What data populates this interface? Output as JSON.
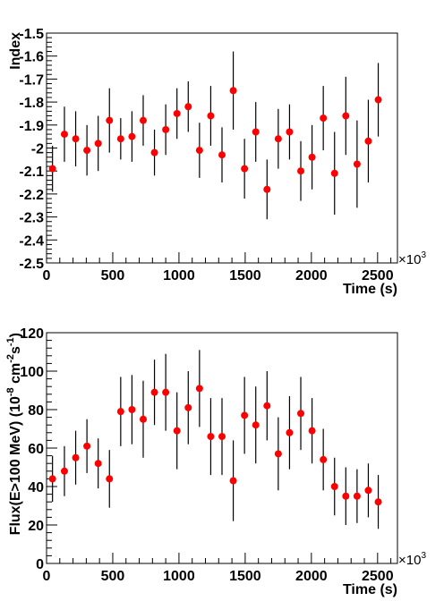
{
  "chart_data": [
    {
      "type": "scatter",
      "xlabel": "Time (s)",
      "ylabel": "Index",
      "x_multiplier": "×10",
      "x_multiplier_exp": "3",
      "xlim": [
        0,
        2650
      ],
      "ylim": [
        -2.5,
        -1.5
      ],
      "x_ticks": [
        0,
        500,
        1000,
        1500,
        2000,
        2500
      ],
      "x_tick_labels": [
        "0",
        "500",
        "1000",
        "1500",
        "2000",
        "2500"
      ],
      "y_ticks": [
        -2.5,
        -2.4,
        -2.3,
        -2.2,
        -2.1,
        -2.0,
        -1.9,
        -1.8,
        -1.7,
        -1.6,
        -1.5
      ],
      "y_tick_labels": [
        "-2.5",
        "-2.4",
        "-2.3",
        "-2.2",
        "-2.1",
        "-2",
        "-1.9",
        "-1.8",
        "-1.7",
        "-1.6",
        "-1.5"
      ],
      "marker_color": "#ff0000",
      "error_color": "#000000",
      "grid": false,
      "points": [
        {
          "x": 45,
          "y": -2.09,
          "err": 0.1
        },
        {
          "x": 135,
          "y": -1.94,
          "err": 0.12
        },
        {
          "x": 220,
          "y": -1.96,
          "err": 0.12
        },
        {
          "x": 305,
          "y": -2.01,
          "err": 0.11
        },
        {
          "x": 390,
          "y": -1.98,
          "err": 0.12
        },
        {
          "x": 475,
          "y": -1.88,
          "err": 0.14
        },
        {
          "x": 560,
          "y": -1.96,
          "err": 0.09
        },
        {
          "x": 645,
          "y": -1.95,
          "err": 0.11
        },
        {
          "x": 730,
          "y": -1.88,
          "err": 0.11
        },
        {
          "x": 815,
          "y": -2.02,
          "err": 0.1
        },
        {
          "x": 900,
          "y": -1.92,
          "err": 0.11
        },
        {
          "x": 985,
          "y": -1.85,
          "err": 0.11
        },
        {
          "x": 1070,
          "y": -1.82,
          "err": 0.11
        },
        {
          "x": 1155,
          "y": -2.01,
          "err": 0.12
        },
        {
          "x": 1240,
          "y": -1.86,
          "err": 0.13
        },
        {
          "x": 1325,
          "y": -2.03,
          "err": 0.12
        },
        {
          "x": 1410,
          "y": -1.75,
          "err": 0.17
        },
        {
          "x": 1495,
          "y": -2.09,
          "err": 0.13
        },
        {
          "x": 1580,
          "y": -1.93,
          "err": 0.13
        },
        {
          "x": 1665,
          "y": -2.18,
          "err": 0.13
        },
        {
          "x": 1750,
          "y": -1.96,
          "err": 0.13
        },
        {
          "x": 1835,
          "y": -1.93,
          "err": 0.12
        },
        {
          "x": 1920,
          "y": -2.1,
          "err": 0.13
        },
        {
          "x": 2005,
          "y": -2.04,
          "err": 0.14
        },
        {
          "x": 2090,
          "y": -1.87,
          "err": 0.14
        },
        {
          "x": 2175,
          "y": -2.11,
          "err": 0.18
        },
        {
          "x": 2260,
          "y": -1.86,
          "err": 0.17
        },
        {
          "x": 2345,
          "y": -2.07,
          "err": 0.19
        },
        {
          "x": 2430,
          "y": -1.97,
          "err": 0.18
        },
        {
          "x": 2505,
          "y": -1.79,
          "err": 0.16
        }
      ]
    },
    {
      "type": "scatter",
      "xlabel": "Time (s)",
      "ylabel_main": "Flux(E>100 MeV) (10",
      "ylabel_sup1": "-8",
      "ylabel_mid": " cm",
      "ylabel_sup2": "-2",
      "ylabel_s": "s",
      "ylabel_sup3": "-1",
      "ylabel_end": ")",
      "x_multiplier": "×10",
      "x_multiplier_exp": "3",
      "xlim": [
        0,
        2650
      ],
      "ylim": [
        0,
        120
      ],
      "x_ticks": [
        0,
        500,
        1000,
        1500,
        2000,
        2500
      ],
      "x_tick_labels": [
        "0",
        "500",
        "1000",
        "1500",
        "2000",
        "2500"
      ],
      "y_ticks": [
        0,
        20,
        40,
        60,
        80,
        100,
        120
      ],
      "y_tick_labels": [
        "0",
        "20",
        "40",
        "60",
        "80",
        "100",
        "120"
      ],
      "marker_color": "#ff0000",
      "error_color": "#000000",
      "grid": false,
      "points": [
        {
          "x": 45,
          "y": 44,
          "err": 12
        },
        {
          "x": 135,
          "y": 48,
          "err": 13
        },
        {
          "x": 220,
          "y": 55,
          "err": 14
        },
        {
          "x": 305,
          "y": 61,
          "err": 14
        },
        {
          "x": 390,
          "y": 52,
          "err": 13
        },
        {
          "x": 475,
          "y": 44,
          "err": 15
        },
        {
          "x": 560,
          "y": 79,
          "err": 18
        },
        {
          "x": 645,
          "y": 80,
          "err": 18
        },
        {
          "x": 730,
          "y": 75,
          "err": 20
        },
        {
          "x": 815,
          "y": 89,
          "err": 17
        },
        {
          "x": 900,
          "y": 89,
          "err": 20
        },
        {
          "x": 985,
          "y": 69,
          "err": 20
        },
        {
          "x": 1070,
          "y": 81,
          "err": 19
        },
        {
          "x": 1155,
          "y": 91,
          "err": 20
        },
        {
          "x": 1240,
          "y": 66,
          "err": 20
        },
        {
          "x": 1325,
          "y": 66,
          "err": 20
        },
        {
          "x": 1410,
          "y": 43,
          "err": 21
        },
        {
          "x": 1495,
          "y": 77,
          "err": 20
        },
        {
          "x": 1580,
          "y": 72,
          "err": 20
        },
        {
          "x": 1665,
          "y": 82,
          "err": 18
        },
        {
          "x": 1750,
          "y": 57,
          "err": 19
        },
        {
          "x": 1835,
          "y": 68,
          "err": 19
        },
        {
          "x": 1920,
          "y": 78,
          "err": 19
        },
        {
          "x": 2005,
          "y": 69,
          "err": 17
        },
        {
          "x": 2090,
          "y": 54,
          "err": 16
        },
        {
          "x": 2175,
          "y": 40,
          "err": 15
        },
        {
          "x": 2260,
          "y": 35,
          "err": 15
        },
        {
          "x": 2345,
          "y": 35,
          "err": 14
        },
        {
          "x": 2430,
          "y": 38,
          "err": 14
        },
        {
          "x": 2505,
          "y": 32,
          "err": 14
        }
      ]
    }
  ]
}
